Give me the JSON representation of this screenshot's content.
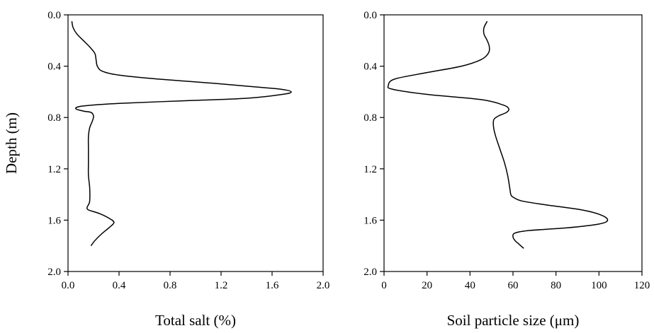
{
  "chart_data": [
    {
      "type": "line",
      "xlabel": "Total salt (%)",
      "ylabel": "Depth (m)",
      "xlim": [
        0.0,
        2.0
      ],
      "ylim": [
        0.0,
        2.0
      ],
      "y_inverted": true,
      "grid": false,
      "x_ticks": [
        "0.0",
        "0.4",
        "0.8",
        "1.2",
        "1.6",
        "2.0"
      ],
      "y_ticks": [
        "0.0",
        "0.4",
        "0.8",
        "1.2",
        "1.6",
        "2.0"
      ],
      "series": [
        {
          "x": [
            0.03,
            0.04,
            0.07,
            0.12,
            0.17,
            0.21,
            0.22,
            0.23,
            0.27,
            0.4,
            0.7,
            1.1,
            1.45,
            1.67,
            1.75,
            1.68,
            1.4,
            0.9,
            0.4,
            0.12,
            0.06,
            0.12,
            0.18,
            0.2,
            0.19,
            0.17,
            0.16,
            0.16,
            0.16,
            0.16,
            0.17,
            0.17,
            0.16,
            0.15,
            0.16,
            0.25,
            0.33,
            0.36,
            0.32,
            0.26,
            0.21,
            0.18
          ],
          "y": [
            0.05,
            0.1,
            0.15,
            0.2,
            0.25,
            0.3,
            0.35,
            0.4,
            0.44,
            0.47,
            0.5,
            0.53,
            0.56,
            0.58,
            0.6,
            0.62,
            0.65,
            0.67,
            0.69,
            0.71,
            0.73,
            0.75,
            0.76,
            0.79,
            0.83,
            0.88,
            0.95,
            1.05,
            1.15,
            1.25,
            1.35,
            1.45,
            1.48,
            1.5,
            1.52,
            1.55,
            1.59,
            1.62,
            1.66,
            1.71,
            1.76,
            1.8
          ]
        }
      ]
    },
    {
      "type": "line",
      "xlabel": "Soil particle size (μm)",
      "ylabel": "",
      "xlim": [
        0,
        120
      ],
      "ylim": [
        0.0,
        2.0
      ],
      "y_inverted": true,
      "grid": false,
      "x_ticks": [
        "0",
        "20",
        "40",
        "60",
        "80",
        "100",
        "120"
      ],
      "y_ticks": [
        "0.0",
        "0.4",
        "0.8",
        "1.2",
        "1.6",
        "2.0"
      ],
      "series": [
        {
          "x": [
            48,
            46.5,
            46.5,
            48,
            49,
            48.5,
            45,
            36,
            20,
            5,
            2,
            4,
            20,
            45,
            55,
            58,
            57,
            53,
            51,
            51,
            52,
            54,
            56,
            57.5,
            58.5,
            59,
            60,
            64,
            75,
            92,
            101,
            104,
            100,
            85,
            68,
            61,
            60,
            61,
            63,
            65
          ],
          "y": [
            0.05,
            0.1,
            0.15,
            0.2,
            0.25,
            0.3,
            0.35,
            0.4,
            0.45,
            0.5,
            0.55,
            0.58,
            0.62,
            0.66,
            0.7,
            0.73,
            0.76,
            0.79,
            0.82,
            0.88,
            0.95,
            1.05,
            1.15,
            1.25,
            1.35,
            1.4,
            1.42,
            1.45,
            1.48,
            1.52,
            1.56,
            1.6,
            1.63,
            1.66,
            1.68,
            1.7,
            1.73,
            1.76,
            1.79,
            1.82
          ]
        }
      ]
    }
  ]
}
